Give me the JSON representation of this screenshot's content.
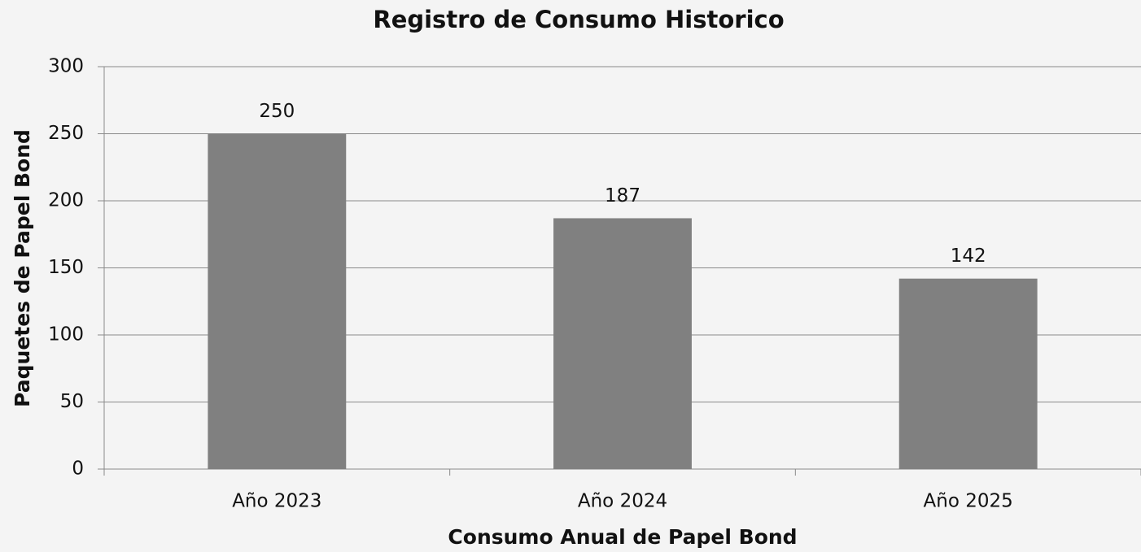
{
  "chart_data": {
    "type": "bar",
    "title": "Registro de Consumo Historico",
    "x_label": "Consumo Anual de Papel Bond",
    "y_label": "Paquetes de Papel Bond",
    "categories": [
      "Año 2023",
      "Año 2024",
      "Año 2025"
    ],
    "values": [
      250,
      187,
      142
    ],
    "color": "#808080",
    "ylim": [
      0,
      300
    ],
    "yticks": [
      0,
      50,
      100,
      150,
      200,
      250,
      300
    ],
    "grid": true
  }
}
